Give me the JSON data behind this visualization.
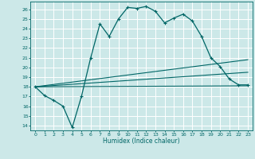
{
  "xlabel": "Humidex (Indice chaleur)",
  "background_color": "#cce8e8",
  "grid_color": "#ffffff",
  "line_color": "#006666",
  "xlim": [
    -0.5,
    23.5
  ],
  "ylim": [
    13.5,
    26.8
  ],
  "yticks": [
    14,
    15,
    16,
    17,
    18,
    19,
    20,
    21,
    22,
    23,
    24,
    25,
    26
  ],
  "xticks": [
    0,
    1,
    2,
    3,
    4,
    5,
    6,
    7,
    8,
    9,
    10,
    11,
    12,
    13,
    14,
    15,
    16,
    17,
    18,
    19,
    20,
    21,
    22,
    23
  ],
  "main_x": [
    0,
    1,
    2,
    3,
    4,
    5,
    6,
    7,
    8,
    9,
    10,
    11,
    12,
    13,
    14,
    15,
    16,
    17,
    18,
    19,
    20,
    21,
    22,
    23
  ],
  "main_y": [
    18,
    17.1,
    16.6,
    16.0,
    13.8,
    17.0,
    21.0,
    24.5,
    23.2,
    25.0,
    26.2,
    26.1,
    26.3,
    25.8,
    24.6,
    25.1,
    25.5,
    24.8,
    23.2,
    21.0,
    20.1,
    18.8,
    18.2,
    18.2
  ],
  "line2_x": [
    0,
    23
  ],
  "line2_y": [
    18.0,
    20.8
  ],
  "line3_x": [
    0,
    23
  ],
  "line3_y": [
    18.0,
    19.5
  ],
  "line4_x": [
    0,
    23
  ],
  "line4_y": [
    18.0,
    18.1
  ]
}
